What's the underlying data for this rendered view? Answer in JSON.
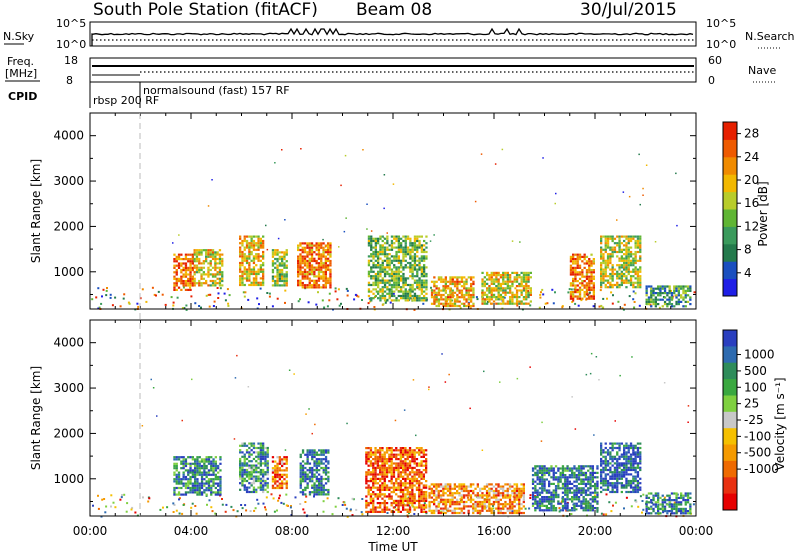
{
  "header": {
    "station": "South Pole Station (fitACF)",
    "beam": "Beam 08",
    "date": "30/Jul/2015"
  },
  "top_panels": {
    "nsky_label": "N.Sky",
    "nsearch_label": "N.Search",
    "freq_label_1": "Freq.",
    "freq_label_2": "[MHz]",
    "nave_label": "Nave",
    "cpid_label": "CPID",
    "nsky_ticks": [
      "10^5",
      "10^0"
    ],
    "nsearch_ticks": [
      "10^5",
      "10^0"
    ],
    "freq_ticks": [
      "18",
      "8"
    ],
    "nave_ticks": [
      "60",
      "0"
    ],
    "cpid_segments": [
      {
        "label": "rbsp 200 RF",
        "start_hour": 0.0
      },
      {
        "label": "normalsound (fast) 157 RF",
        "start_hour": 2.0
      }
    ]
  },
  "chart_data": [
    {
      "type": "heatmap",
      "name": "power",
      "ylabel": "Slant Range [km]",
      "ylim": [
        180,
        4500
      ],
      "xlim_hours": [
        0,
        24
      ],
      "yticks": [
        "1000",
        "2000",
        "3000",
        "4000"
      ],
      "colorbar": {
        "label": "Power [dB]",
        "range": [
          0,
          30
        ],
        "ticks": [
          "4",
          "8",
          "12",
          "16",
          "20",
          "24",
          "28"
        ],
        "colors": [
          "#1f1fe6",
          "#1a4fbf",
          "#247a4c",
          "#3a9a5c",
          "#5fb534",
          "#b8cc2a",
          "#f2b800",
          "#f08b00",
          "#ee5a00",
          "#e62000"
        ]
      },
      "blobs": [
        {
          "t0": 3.3,
          "t1": 4.1,
          "r0": 600,
          "r1": 1400,
          "level": 0.85
        },
        {
          "t0": 4.1,
          "t1": 5.2,
          "r0": 700,
          "r1": 1500,
          "level": 0.6
        },
        {
          "t0": 5.9,
          "t1": 6.9,
          "r0": 700,
          "r1": 1800,
          "level": 0.65
        },
        {
          "t0": 7.2,
          "t1": 7.8,
          "r0": 700,
          "r1": 1500,
          "level": 0.5
        },
        {
          "t0": 8.2,
          "t1": 9.5,
          "r0": 650,
          "r1": 1650,
          "level": 0.8
        },
        {
          "t0": 11.0,
          "t1": 13.3,
          "r0": 350,
          "r1": 1800,
          "level": 0.45
        },
        {
          "t0": 13.5,
          "t1": 15.2,
          "r0": 250,
          "r1": 900,
          "level": 0.7
        },
        {
          "t0": 15.5,
          "t1": 17.5,
          "r0": 300,
          "r1": 1000,
          "level": 0.6
        },
        {
          "t0": 19.0,
          "t1": 20.0,
          "r0": 400,
          "r1": 1400,
          "level": 0.8
        },
        {
          "t0": 20.2,
          "t1": 21.8,
          "r0": 650,
          "r1": 1800,
          "level": 0.55
        },
        {
          "t0": 22.0,
          "t1": 23.8,
          "r0": 250,
          "r1": 700,
          "level": 0.35
        }
      ]
    },
    {
      "type": "heatmap",
      "name": "velocity",
      "ylabel": "Slant Range [km]",
      "xlabel": "Time UT",
      "ylim": [
        180,
        4500
      ],
      "xlim_hours": [
        0,
        24
      ],
      "yticks": [
        "1000",
        "2000",
        "3000",
        "4000"
      ],
      "xticks": [
        "00:00",
        "04:00",
        "08:00",
        "12:00",
        "16:00",
        "20:00",
        "00:00"
      ],
      "colorbar": {
        "label": "Velocity [m s⁻¹]",
        "ticks": [
          "1000",
          "500",
          "100",
          "25",
          "-25",
          "-100",
          "-500",
          "-1000"
        ],
        "colors": [
          "#2a3fbf",
          "#2e6bb0",
          "#2e8c5a",
          "#3aa840",
          "#7fd040",
          "#c8c8c8",
          "#f5c000",
          "#f59a00",
          "#ef6a00",
          "#e83010",
          "#e60000"
        ]
      },
      "blobs": [
        {
          "t0": 3.3,
          "t1": 5.2,
          "r0": 650,
          "r1": 1500,
          "level": 0.2
        },
        {
          "t0": 5.9,
          "t1": 7.0,
          "r0": 700,
          "r1": 1800,
          "level": 0.25
        },
        {
          "t0": 7.2,
          "t1": 7.8,
          "r0": 800,
          "r1": 1500,
          "level": 0.75
        },
        {
          "t0": 8.3,
          "t1": 9.4,
          "r0": 650,
          "r1": 1650,
          "level": 0.15
        },
        {
          "t0": 10.9,
          "t1": 13.3,
          "r0": 250,
          "r1": 1700,
          "level": 0.8
        },
        {
          "t0": 13.4,
          "t1": 17.2,
          "r0": 250,
          "r1": 900,
          "level": 0.7
        },
        {
          "t0": 17.5,
          "t1": 20.1,
          "r0": 300,
          "r1": 1300,
          "level": 0.15
        },
        {
          "t0": 20.2,
          "t1": 21.8,
          "r0": 700,
          "r1": 1800,
          "level": 0.1
        },
        {
          "t0": 22.0,
          "t1": 23.8,
          "r0": 250,
          "r1": 700,
          "level": 0.2
        }
      ]
    }
  ]
}
